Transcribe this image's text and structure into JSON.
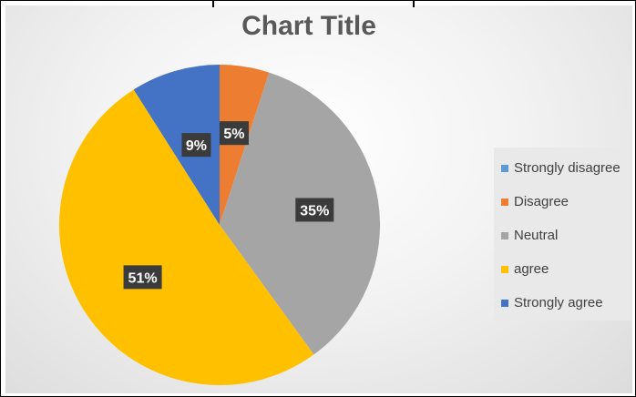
{
  "chart_data": {
    "type": "pie",
    "title": "Chart Title",
    "categories": [
      "Strongly disagree",
      "Disagree",
      "Neutral",
      "agree",
      "Strongly agree"
    ],
    "values": [
      0,
      5,
      35,
      51,
      9
    ],
    "data_labels": [
      "",
      "5%",
      "35%",
      "51%",
      "9%"
    ],
    "colors": [
      "#5B9BD5",
      "#ED7D31",
      "#A5A5A5",
      "#FFC000",
      "#4472C4"
    ],
    "legend_position": "right"
  }
}
